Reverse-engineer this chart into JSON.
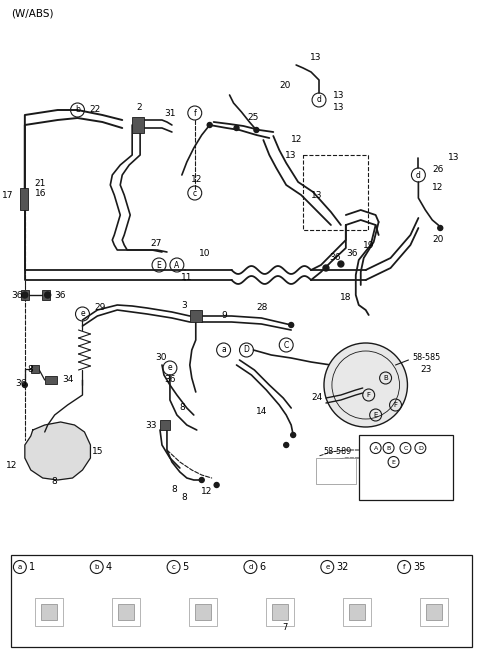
{
  "title": "(W/ABS)",
  "bg_color": "#ffffff",
  "line_color": "#1a1a1a",
  "text_color": "#000000",
  "figsize": [
    4.8,
    6.55
  ],
  "dpi": 100,
  "legend_items": [
    {
      "symbol": "a",
      "num": "1"
    },
    {
      "symbol": "b",
      "num": "4"
    },
    {
      "symbol": "c",
      "num": "5"
    },
    {
      "symbol": "d",
      "num": "6"
    },
    {
      "symbol": "e",
      "num": "32"
    },
    {
      "symbol": "f",
      "num": "35"
    }
  ]
}
